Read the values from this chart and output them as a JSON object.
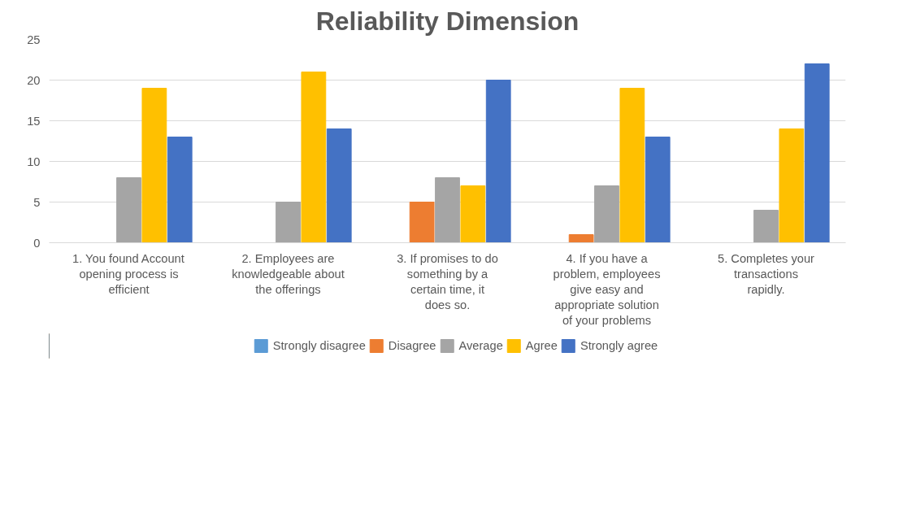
{
  "chart_data": {
    "type": "bar",
    "title": "Reliability Dimension",
    "categories": [
      "1. You found Account opening process is efficient",
      "2. Employees are knowledgeable about the offerings",
      "3. If promises to do something by a certain time, it does so.",
      "4. If you have a problem, employees give easy and appropriate solution of your problems",
      "5. Completes your transactions rapidly."
    ],
    "series": [
      {
        "name": "Strongly disagree",
        "color": "#5b9bd5",
        "values": [
          0,
          0,
          0,
          0,
          0
        ]
      },
      {
        "name": "Disagree",
        "color": "#ed7d31",
        "values": [
          0,
          0,
          5,
          1,
          0
        ]
      },
      {
        "name": "Average",
        "color": "#a5a5a5",
        "values": [
          8,
          5,
          8,
          7,
          4
        ]
      },
      {
        "name": "Agree",
        "color": "#ffc000",
        "values": [
          19,
          21,
          7,
          19,
          14
        ]
      },
      {
        "name": "Strongly agree",
        "color": "#4472c4",
        "values": [
          13,
          14,
          20,
          13,
          22
        ]
      }
    ],
    "ylim": [
      0,
      25
    ],
    "yticks": [
      0,
      5,
      10,
      15,
      20,
      25
    ],
    "grid": "y",
    "legend": "bottom"
  }
}
